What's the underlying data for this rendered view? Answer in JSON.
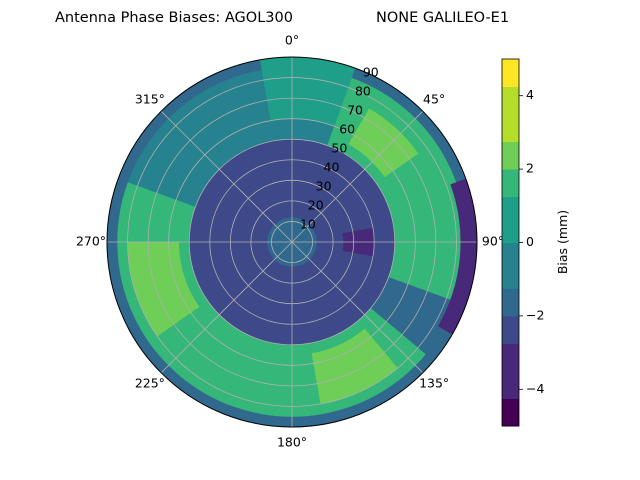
{
  "chart_data": {
    "type": "polar-contour",
    "title": "Antenna Phase Biases: AGOL300",
    "subtitle": "NONE GALILEO-E1",
    "angle_axis": {
      "direction": "clockwise",
      "zero_at": "top",
      "tick_labels": [
        {
          "angle": 0,
          "label": "0°"
        },
        {
          "angle": 45,
          "label": "45°"
        },
        {
          "angle": 90,
          "label": "90°"
        },
        {
          "angle": 135,
          "label": "135°"
        },
        {
          "angle": 180,
          "label": "180°"
        },
        {
          "angle": 225,
          "label": "225°"
        },
        {
          "angle": 270,
          "label": "270°"
        },
        {
          "angle": 315,
          "label": "315°"
        }
      ]
    },
    "radial_axis": {
      "range": [
        0,
        90
      ],
      "ticks": [
        10,
        20,
        30,
        40,
        50,
        60,
        70,
        80,
        90
      ],
      "tick_labels": [
        "10",
        "20",
        "30",
        "40",
        "50",
        "60",
        "70",
        "80",
        "90"
      ]
    },
    "grid": true,
    "colorbar": {
      "label": "Bias (mm)",
      "range": [
        -5,
        5
      ],
      "ticks": [
        -4,
        -2,
        0,
        2,
        4
      ],
      "tick_labels": [
        "−4",
        "−2",
        "0",
        "2",
        "4"
      ],
      "levels": [
        -5,
        -4.25,
        -3.5,
        -2.75,
        -2,
        -1.25,
        -0.5,
        0,
        0.5,
        1.25,
        2,
        2.75,
        3.5,
        4.25,
        5
      ],
      "colors": [
        "#440154",
        "#482878",
        "#3e4989",
        "#31688e",
        "#26828e",
        "#1f9e89",
        "#35b779",
        "#6ece58",
        "#b5de2b",
        "#fde725"
      ]
    },
    "contour_bands": [
      {
        "name": "outer-ring",
        "level": -1.2,
        "color": "#31688e",
        "zenith": [
          70,
          90
        ],
        "azimuth": [
          0,
          360
        ]
      },
      {
        "name": "upper-plateau",
        "level": 0.3,
        "color": "#26828e",
        "zenith": [
          40,
          85
        ],
        "azimuth": [
          280,
          380
        ]
      },
      {
        "name": "north-ridge",
        "level": 1.4,
        "color": "#1f9e89",
        "zenith": [
          60,
          90
        ],
        "azimuth": [
          350,
          380
        ]
      },
      {
        "name": "east-arc",
        "level": 1.8,
        "color": "#35b779",
        "zenith": [
          40,
          85
        ],
        "azimuth": [
          20,
          110
        ]
      },
      {
        "name": "east-arc-peak",
        "level": 3.2,
        "color": "#6ece58",
        "zenith": [
          55,
          75
        ],
        "azimuth": [
          30,
          55
        ]
      },
      {
        "name": "south-arc",
        "level": 1.8,
        "color": "#35b779",
        "zenith": [
          40,
          85
        ],
        "azimuth": [
          130,
          290
        ]
      },
      {
        "name": "south-arc-peak",
        "level": 3.2,
        "color": "#6ece58",
        "zenith": [
          55,
          80
        ],
        "azimuth": [
          140,
          170
        ]
      },
      {
        "name": "southwest-peak",
        "level": 3.0,
        "color": "#6ece58",
        "zenith": [
          55,
          80
        ],
        "azimuth": [
          235,
          270
        ]
      },
      {
        "name": "inner-trough",
        "level": -2.4,
        "color": "#3e4989",
        "zenith": [
          10,
          50
        ],
        "azimuth": [
          0,
          360
        ]
      },
      {
        "name": "center-plateau",
        "level": -1.5,
        "color": "#31688e",
        "zenith": [
          0,
          12
        ],
        "azimuth": [
          0,
          360
        ]
      },
      {
        "name": "east-minimum",
        "level": -3.8,
        "color": "#482878",
        "zenith": [
          25,
          40
        ],
        "azimuth": [
          80,
          100
        ]
      },
      {
        "name": "rim-minimum",
        "level": -3.6,
        "color": "#482878",
        "zenith": [
          82,
          90
        ],
        "azimuth": [
          70,
          120
        ]
      }
    ]
  }
}
